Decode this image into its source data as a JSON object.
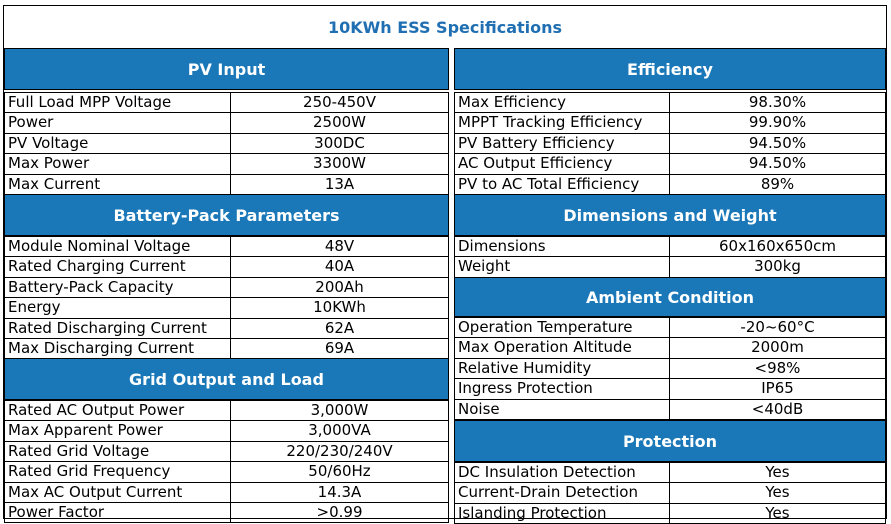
{
  "title": "10KWh ESS Specifications",
  "left": {
    "pv_input": {
      "heading": "PV Input",
      "rows": [
        {
          "label": "Full Load MPP Voltage",
          "value": "250-450V"
        },
        {
          "label": "Power",
          "value": "2500W"
        },
        {
          "label": "PV Voltage",
          "value": "300DC"
        },
        {
          "label": "Max Power",
          "value": "3300W"
        },
        {
          "label": "Max Current",
          "value": "13A"
        }
      ]
    },
    "battery": {
      "heading": "Battery-Pack Parameters",
      "rows": [
        {
          "label": "Module Nominal Voltage",
          "value": "48V"
        },
        {
          "label": "Rated Charging Current",
          "value": "40A"
        },
        {
          "label": "Battery-Pack Capacity",
          "value": "200Ah"
        },
        {
          "label": "Energy",
          "value": "10KWh"
        },
        {
          "label": "Rated Discharging Current",
          "value": "62A"
        },
        {
          "label": "Max Discharging Current",
          "value": "69A"
        }
      ]
    },
    "grid": {
      "heading": "Grid Output and Load",
      "rows": [
        {
          "label": "Rated AC Output Power",
          "value": "3,000W"
        },
        {
          "label": "Max Apparent Power",
          "value": "3,000VA"
        },
        {
          "label": "Rated Grid Voltage",
          "value": "220/230/240V"
        },
        {
          "label": "Rated Grid Frequency",
          "value": "50/60Hz"
        },
        {
          "label": "Max AC Output Current",
          "value": "14.3A"
        },
        {
          "label": "Power Factor",
          "value": ">0.99"
        }
      ]
    }
  },
  "right": {
    "efficiency": {
      "heading": "Efficiency",
      "rows": [
        {
          "label": "Max Efficiency",
          "value": "98.30%"
        },
        {
          "label": "MPPT Tracking Efficiency",
          "value": "99.90%"
        },
        {
          "label": "PV Battery Efficiency",
          "value": "94.50%"
        },
        {
          "label": "AC Output Efficiency",
          "value": "94.50%"
        },
        {
          "label": "PV to AC Total Efficiency",
          "value": "89%"
        }
      ]
    },
    "dimensions": {
      "heading": "Dimensions and Weight",
      "rows": [
        {
          "label": "Dimensions",
          "value": "60x160x650cm"
        },
        {
          "label": "Weight",
          "value": "300kg"
        }
      ]
    },
    "ambient": {
      "heading": "Ambient Condition",
      "rows": [
        {
          "label": "Operation Temperature",
          "value": "-20~60°C"
        },
        {
          "label": "Max Operation Altitude",
          "value": "2000m"
        },
        {
          "label": "Relative Humidity",
          "value": "<98%"
        },
        {
          "label": "Ingress Protection",
          "value": "IP65"
        },
        {
          "label": "Noise",
          "value": "<40dB"
        }
      ]
    },
    "protection": {
      "heading": "Protection",
      "rows": [
        {
          "label": "DC Insulation Detection",
          "value": "Yes"
        },
        {
          "label": "Current-Drain Detection",
          "value": "Yes"
        },
        {
          "label": "Islanding Protection",
          "value": "Yes"
        }
      ]
    }
  }
}
